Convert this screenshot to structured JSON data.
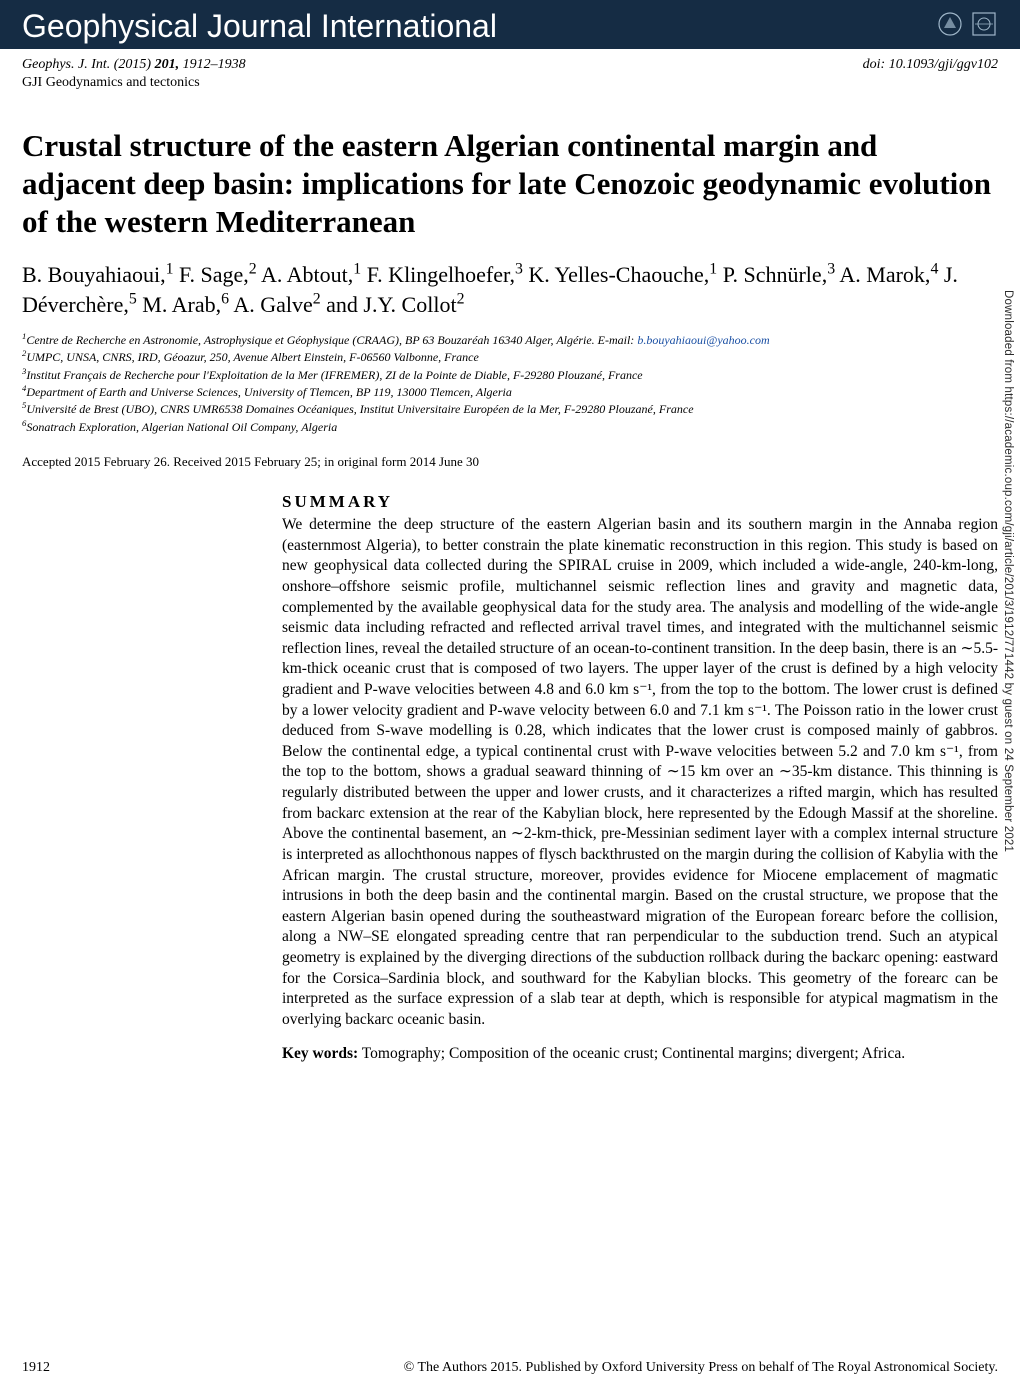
{
  "header": {
    "journal_banner": "Geophysical Journal International",
    "citation_left": "Geophys. J. Int. (2015) 201, 1912–1938",
    "doi": "doi: 10.1093/gji/ggv102",
    "subject": "GJI Geodynamics and tectonics"
  },
  "title": "Crustal structure of the eastern Algerian continental margin and adjacent deep basin: implications for late Cenozoic geodynamic evolution of the western Mediterranean",
  "authors_html": "B. Bouyahiaoui,<sup>1</sup> F. Sage,<sup>2</sup> A. Abtout,<sup>1</sup> F. Klingelhoefer,<sup>3</sup> K. Yelles-Chaouche,<sup>1</sup> P. Schnürle,<sup>3</sup> A. Marok,<sup>4</sup> J. Déverchère,<sup>5</sup> M. Arab,<sup>6</sup> A. Galve<sup>2</sup> and J.Y. Collot<sup>2</sup>",
  "affiliations": [
    {
      "n": "1",
      "text": "Centre de Recherche en Astronomie, Astrophysique et Géophysique (CRAAG), BP 63 Bouzaréah 16340 Alger, Algérie. E-mail: ",
      "email": "b.bouyahiaoui@yahoo.com"
    },
    {
      "n": "2",
      "text": "UMPC, UNSA, CNRS, IRD, Géoazur, 250, Avenue Albert Einstein, F-06560 Valbonne, France"
    },
    {
      "n": "3",
      "text": "Institut Français de Recherche pour l'Exploitation de la Mer (IFREMER), ZI de la Pointe de Diable, F-29280 Plouzané, France"
    },
    {
      "n": "4",
      "text": "Department of Earth and Universe Sciences, University of Tlemcen, BP 119, 13000 Tlemcen, Algeria"
    },
    {
      "n": "5",
      "text": "Université de Brest (UBO), CNRS UMR6538 Domaines Océaniques, Institut Universitaire Européen de la Mer, F-29280 Plouzané, France"
    },
    {
      "n": "6",
      "text": "Sonatrach Exploration, Algerian National Oil Company, Algeria"
    }
  ],
  "accepted": "Accepted 2015 February 26. Received 2015 February 25; in original form 2014 June 30",
  "summary": {
    "heading": "SUMMARY",
    "body": "We determine the deep structure of the eastern Algerian basin and its southern margin in the Annaba region (easternmost Algeria), to better constrain the plate kinematic reconstruction in this region. This study is based on new geophysical data collected during the SPIRAL cruise in 2009, which included a wide-angle, 240-km-long, onshore–offshore seismic profile, multichannel seismic reflection lines and gravity and magnetic data, complemented by the available geophysical data for the study area. The analysis and modelling of the wide-angle seismic data including refracted and reflected arrival travel times, and integrated with the multichannel seismic reflection lines, reveal the detailed structure of an ocean-to-continent transition. In the deep basin, there is an ∼5.5-km-thick oceanic crust that is composed of two layers. The upper layer of the crust is defined by a high velocity gradient and P-wave velocities between 4.8 and 6.0 km s⁻¹, from the top to the bottom. The lower crust is defined by a lower velocity gradient and P-wave velocity between 6.0 and 7.1 km s⁻¹. The Poisson ratio in the lower crust deduced from S-wave modelling is 0.28, which indicates that the lower crust is composed mainly of gabbros. Below the continental edge, a typical continental crust with P-wave velocities between 5.2 and 7.0 km s⁻¹, from the top to the bottom, shows a gradual seaward thinning of ∼15 km over an ∼35-km distance. This thinning is regularly distributed between the upper and lower crusts, and it characterizes a rifted margin, which has resulted from backarc extension at the rear of the Kabylian block, here represented by the Edough Massif at the shoreline. Above the continental basement, an ∼2-km-thick, pre-Messinian sediment layer with a complex internal structure is interpreted as allochthonous nappes of flysch backthrusted on the margin during the collision of Kabylia with the African margin. The crustal structure, moreover, provides evidence for Miocene emplacement of magmatic intrusions in both the deep basin and the continental margin. Based on the crustal structure, we propose that the eastern Algerian basin opened during the southeastward migration of the European forearc before the collision, along a NW–SE elongated spreading centre that ran perpendicular to the subduction trend. Such an atypical geometry is explained by the diverging directions of the subduction rollback during the backarc opening: eastward for the Corsica–Sardinia block, and southward for the Kabylian blocks. This geometry of the forearc can be interpreted as the surface expression of a slab tear at depth, which is responsible for atypical magmatism in the overlying backarc oceanic basin."
  },
  "keywords_label": "Key words:",
  "keywords_text": " Tomography; Composition of the oceanic crust; Continental margins; divergent; Africa.",
  "footer": {
    "page": "1912",
    "copyright": "© The Authors 2015. Published by Oxford University Press on behalf of The Royal Astronomical Society."
  },
  "sidebar": "Downloaded from https://academic.oup.com/gji/article/201/3/1912/771442 by guest on 24 September 2021",
  "colors": {
    "header_bg": "#152c44",
    "header_fg": "#ffffff",
    "link": "#1a4fa3",
    "text": "#000000",
    "sidebar_text": "#2a2a2a"
  }
}
